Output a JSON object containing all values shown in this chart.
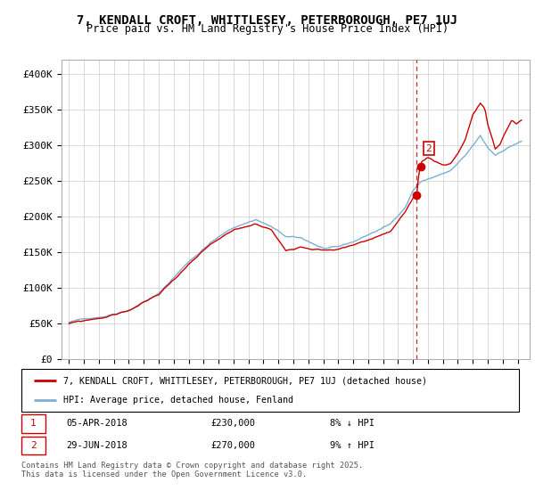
{
  "title": "7, KENDALL CROFT, WHITTLESEY, PETERBOROUGH, PE7 1UJ",
  "subtitle": "Price paid vs. HM Land Registry's House Price Index (HPI)",
  "legend_line1": "7, KENDALL CROFT, WHITTLESEY, PETERBOROUGH, PE7 1UJ (detached house)",
  "legend_line2": "HPI: Average price, detached house, Fenland",
  "annotation1_date": "05-APR-2018",
  "annotation1_price": "£230,000",
  "annotation1_hpi": "8% ↓ HPI",
  "annotation1_value": 230000,
  "annotation1_year": 2018.25,
  "annotation2_date": "29-JUN-2018",
  "annotation2_price": "£270,000",
  "annotation2_hpi": "9% ↑ HPI",
  "annotation2_value": 270000,
  "annotation2_year": 2018.5,
  "vline_year": 2018.25,
  "ylabel_ticks": [
    "£0",
    "£50K",
    "£100K",
    "£150K",
    "£200K",
    "£250K",
    "£300K",
    "£350K",
    "£400K"
  ],
  "ytick_values": [
    0,
    50000,
    100000,
    150000,
    200000,
    250000,
    300000,
    350000,
    400000
  ],
  "ylim": [
    0,
    420000
  ],
  "xlim_start": 1994.5,
  "xlim_end": 2025.8,
  "hpi_color": "#7BAFD4",
  "property_color": "#CC0000",
  "background_color": "#FFFFFF",
  "grid_color": "#CCCCCC",
  "footer_text": "Contains HM Land Registry data © Crown copyright and database right 2025.\nThis data is licensed under the Open Government Licence v3.0.",
  "annotation_box_color": "#CC0000",
  "dashed_line_color": "#CC0000"
}
